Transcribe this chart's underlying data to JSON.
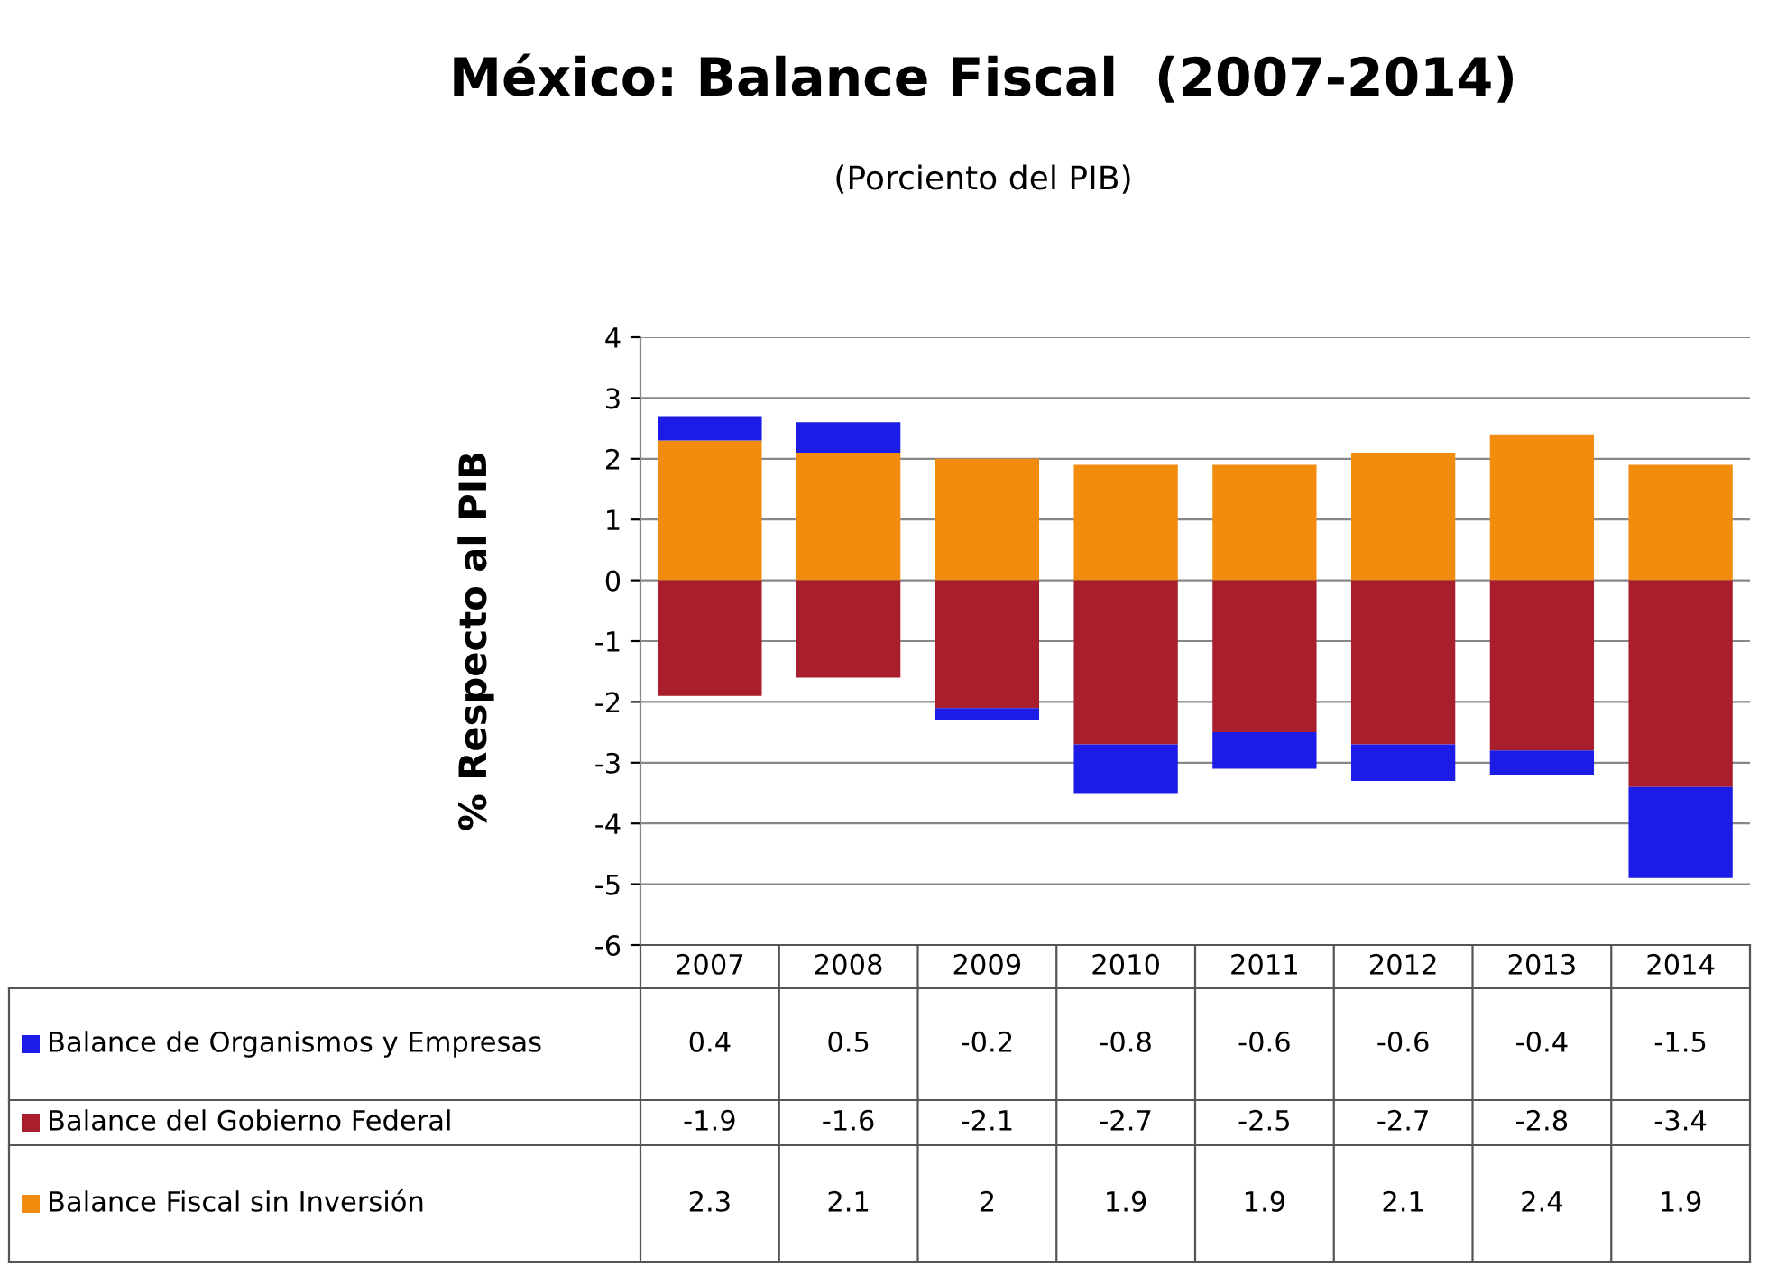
{
  "chart_data": {
    "type": "bar",
    "title": "México: Balance Fiscal  (2007-2014)",
    "subtitle": "(Porciento del PIB)",
    "ylabel": "% Respecto al PIB",
    "categories": [
      "2007",
      "2008",
      "2009",
      "2010",
      "2011",
      "2012",
      "2013",
      "2014"
    ],
    "stacked": true,
    "series": [
      {
        "name": "Balance Fiscal sin Inversión",
        "color": "#f28c0f",
        "values": [
          2.3,
          2.1,
          2,
          1.9,
          1.9,
          2.1,
          2.4,
          1.9
        ]
      },
      {
        "name": "Balance del Gobierno Federal",
        "color": "#a81e2c",
        "values": [
          -1.9,
          -1.6,
          -2.1,
          -2.7,
          -2.5,
          -2.7,
          -2.8,
          -3.4
        ]
      },
      {
        "name": "Balance de Organismos y Empresas",
        "color": "#1c1ce6",
        "values": [
          0.4,
          0.5,
          -0.2,
          -0.8,
          -0.6,
          -0.6,
          -0.4,
          -1.5
        ]
      }
    ],
    "ylim": [
      -6,
      4
    ],
    "yticks": [
      -6,
      -5,
      -4,
      -3,
      -2,
      -1,
      0,
      1,
      2,
      3,
      4
    ],
    "grid": "y",
    "data_labels": true,
    "legend": "bottom"
  }
}
